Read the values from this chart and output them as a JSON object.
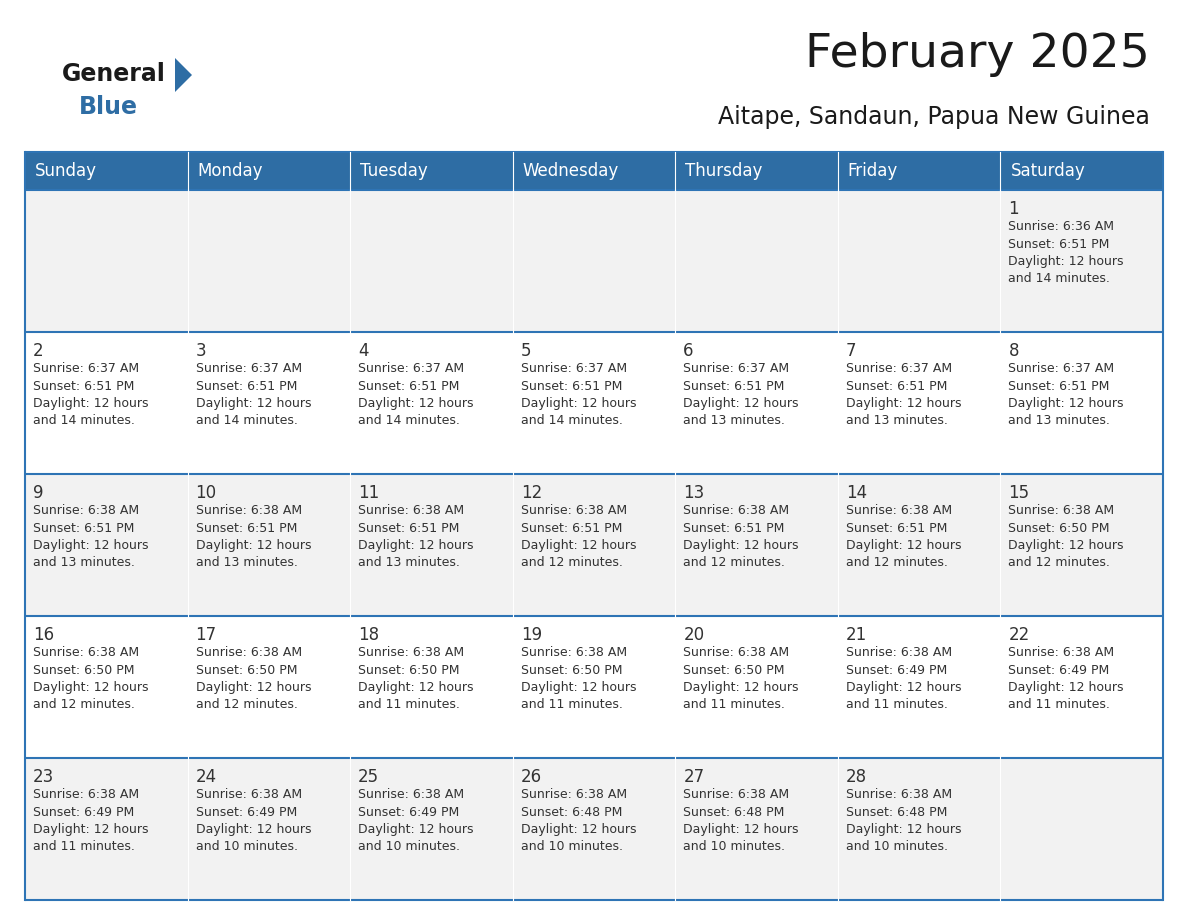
{
  "title": "February 2025",
  "subtitle": "Aitape, Sandaun, Papua New Guinea",
  "header_bg_color": "#2E6DA4",
  "header_text_color": "#FFFFFF",
  "odd_row_bg": "#F2F2F2",
  "even_row_bg": "#FFFFFF",
  "day_number_color": "#333333",
  "text_color": "#333333",
  "border_color": "#2E74B5",
  "days_of_week": [
    "Sunday",
    "Monday",
    "Tuesday",
    "Wednesday",
    "Thursday",
    "Friday",
    "Saturday"
  ],
  "weeks": [
    [
      {
        "day": null,
        "info": null
      },
      {
        "day": null,
        "info": null
      },
      {
        "day": null,
        "info": null
      },
      {
        "day": null,
        "info": null
      },
      {
        "day": null,
        "info": null
      },
      {
        "day": null,
        "info": null
      },
      {
        "day": 1,
        "info": "Sunrise: 6:36 AM\nSunset: 6:51 PM\nDaylight: 12 hours\nand 14 minutes."
      }
    ],
    [
      {
        "day": 2,
        "info": "Sunrise: 6:37 AM\nSunset: 6:51 PM\nDaylight: 12 hours\nand 14 minutes."
      },
      {
        "day": 3,
        "info": "Sunrise: 6:37 AM\nSunset: 6:51 PM\nDaylight: 12 hours\nand 14 minutes."
      },
      {
        "day": 4,
        "info": "Sunrise: 6:37 AM\nSunset: 6:51 PM\nDaylight: 12 hours\nand 14 minutes."
      },
      {
        "day": 5,
        "info": "Sunrise: 6:37 AM\nSunset: 6:51 PM\nDaylight: 12 hours\nand 14 minutes."
      },
      {
        "day": 6,
        "info": "Sunrise: 6:37 AM\nSunset: 6:51 PM\nDaylight: 12 hours\nand 13 minutes."
      },
      {
        "day": 7,
        "info": "Sunrise: 6:37 AM\nSunset: 6:51 PM\nDaylight: 12 hours\nand 13 minutes."
      },
      {
        "day": 8,
        "info": "Sunrise: 6:37 AM\nSunset: 6:51 PM\nDaylight: 12 hours\nand 13 minutes."
      }
    ],
    [
      {
        "day": 9,
        "info": "Sunrise: 6:38 AM\nSunset: 6:51 PM\nDaylight: 12 hours\nand 13 minutes."
      },
      {
        "day": 10,
        "info": "Sunrise: 6:38 AM\nSunset: 6:51 PM\nDaylight: 12 hours\nand 13 minutes."
      },
      {
        "day": 11,
        "info": "Sunrise: 6:38 AM\nSunset: 6:51 PM\nDaylight: 12 hours\nand 13 minutes."
      },
      {
        "day": 12,
        "info": "Sunrise: 6:38 AM\nSunset: 6:51 PM\nDaylight: 12 hours\nand 12 minutes."
      },
      {
        "day": 13,
        "info": "Sunrise: 6:38 AM\nSunset: 6:51 PM\nDaylight: 12 hours\nand 12 minutes."
      },
      {
        "day": 14,
        "info": "Sunrise: 6:38 AM\nSunset: 6:51 PM\nDaylight: 12 hours\nand 12 minutes."
      },
      {
        "day": 15,
        "info": "Sunrise: 6:38 AM\nSunset: 6:50 PM\nDaylight: 12 hours\nand 12 minutes."
      }
    ],
    [
      {
        "day": 16,
        "info": "Sunrise: 6:38 AM\nSunset: 6:50 PM\nDaylight: 12 hours\nand 12 minutes."
      },
      {
        "day": 17,
        "info": "Sunrise: 6:38 AM\nSunset: 6:50 PM\nDaylight: 12 hours\nand 12 minutes."
      },
      {
        "day": 18,
        "info": "Sunrise: 6:38 AM\nSunset: 6:50 PM\nDaylight: 12 hours\nand 11 minutes."
      },
      {
        "day": 19,
        "info": "Sunrise: 6:38 AM\nSunset: 6:50 PM\nDaylight: 12 hours\nand 11 minutes."
      },
      {
        "day": 20,
        "info": "Sunrise: 6:38 AM\nSunset: 6:50 PM\nDaylight: 12 hours\nand 11 minutes."
      },
      {
        "day": 21,
        "info": "Sunrise: 6:38 AM\nSunset: 6:49 PM\nDaylight: 12 hours\nand 11 minutes."
      },
      {
        "day": 22,
        "info": "Sunrise: 6:38 AM\nSunset: 6:49 PM\nDaylight: 12 hours\nand 11 minutes."
      }
    ],
    [
      {
        "day": 23,
        "info": "Sunrise: 6:38 AM\nSunset: 6:49 PM\nDaylight: 12 hours\nand 11 minutes."
      },
      {
        "day": 24,
        "info": "Sunrise: 6:38 AM\nSunset: 6:49 PM\nDaylight: 12 hours\nand 10 minutes."
      },
      {
        "day": 25,
        "info": "Sunrise: 6:38 AM\nSunset: 6:49 PM\nDaylight: 12 hours\nand 10 minutes."
      },
      {
        "day": 26,
        "info": "Sunrise: 6:38 AM\nSunset: 6:48 PM\nDaylight: 12 hours\nand 10 minutes."
      },
      {
        "day": 27,
        "info": "Sunrise: 6:38 AM\nSunset: 6:48 PM\nDaylight: 12 hours\nand 10 minutes."
      },
      {
        "day": 28,
        "info": "Sunrise: 6:38 AM\nSunset: 6:48 PM\nDaylight: 12 hours\nand 10 minutes."
      },
      {
        "day": null,
        "info": null
      }
    ]
  ],
  "title_fontsize": 34,
  "subtitle_fontsize": 17,
  "header_fontsize": 12,
  "day_number_fontsize": 12,
  "info_fontsize": 9
}
